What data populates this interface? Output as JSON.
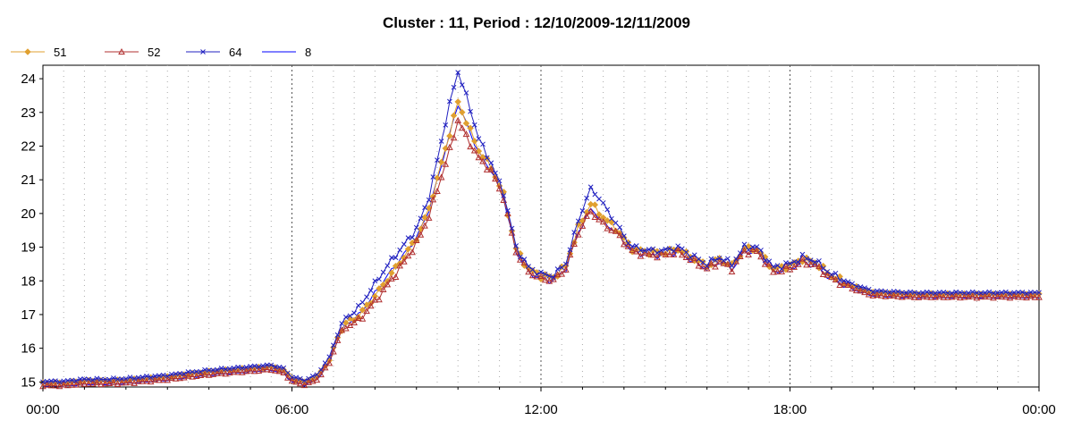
{
  "chart_data": {
    "type": "line",
    "title": "Cluster : 11, Period : 12/10/2009-12/11/2009",
    "xlabel": "",
    "ylabel": "",
    "x_ticks": [
      "00:00",
      "06:00",
      "12:00",
      "18:00",
      "00:00"
    ],
    "y_ticks": [
      15,
      16,
      17,
      18,
      19,
      20,
      21,
      22,
      23,
      24
    ],
    "xlim": [
      0,
      24
    ],
    "ylim": [
      14.85,
      24.4
    ],
    "grid": "vertical-dotted",
    "legend": "top-left",
    "series_shape": {
      "x": [
        0,
        0.5,
        1,
        1.5,
        2,
        2.5,
        3,
        3.5,
        4,
        4.5,
        5,
        5.5,
        5.8,
        6,
        6.3,
        6.6,
        6.9,
        7.1,
        7.3,
        7.6,
        8,
        8.3,
        8.6,
        9,
        9.3,
        9.6,
        9.8,
        10,
        10.2,
        10.5,
        10.8,
        11.1,
        11.4,
        11.7,
        12,
        12.3,
        12.6,
        12.9,
        13.2,
        13.5,
        13.8,
        14.2,
        14.6,
        15,
        15.3,
        15.7,
        16,
        16.3,
        16.6,
        16.9,
        17.2,
        17.6,
        18,
        18.3,
        18.6,
        19,
        19.5,
        20,
        21,
        22,
        23,
        24
      ],
      "y": [
        14.92,
        14.92,
        14.98,
        14.98,
        15.0,
        15.05,
        15.1,
        15.18,
        15.25,
        15.3,
        15.35,
        15.4,
        15.3,
        15.05,
        14.95,
        15.1,
        15.6,
        16.3,
        16.7,
        16.9,
        17.5,
        18.0,
        18.5,
        19.2,
        20.0,
        21.2,
        22.0,
        22.9,
        22.4,
        21.7,
        21.3,
        20.5,
        18.9,
        18.3,
        18.1,
        18.05,
        18.4,
        19.5,
        20.2,
        19.8,
        19.5,
        18.9,
        18.8,
        18.8,
        18.9,
        18.6,
        18.4,
        18.6,
        18.4,
        18.9,
        18.9,
        18.3,
        18.4,
        18.6,
        18.5,
        18.1,
        17.8,
        17.6,
        17.55,
        17.55,
        17.55,
        17.55
      ]
    },
    "series": [
      {
        "name": "51",
        "color": "#e0a030",
        "marker": "diamond",
        "offset": 0.05,
        "peak_extra": 0.35,
        "peak2_extra": 0.05,
        "early_shift": 0.0
      },
      {
        "name": "52",
        "color": "#b03030",
        "marker": "triangle",
        "offset": -0.03,
        "peak_extra": -0.1,
        "peak2_extra": -0.1,
        "early_shift": -0.1
      },
      {
        "name": "64",
        "color": "#2020c0",
        "marker": "x",
        "offset": 0.1,
        "peak_extra": 1.2,
        "peak2_extra": 0.45,
        "early_shift": 0.35
      },
      {
        "name": "8",
        "color": "#0000ff",
        "marker": "none",
        "offset": -0.05,
        "peak_extra": 0.4,
        "peak2_extra": 0.0,
        "early_shift": 0.2
      }
    ]
  }
}
